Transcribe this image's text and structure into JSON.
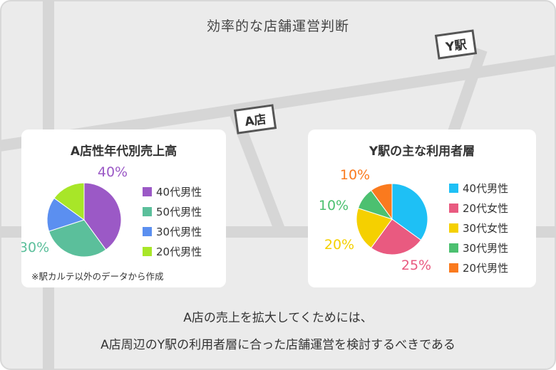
{
  "title": "効率的な店舗運営判断",
  "map_labels": {
    "station": "Y駅",
    "store": "A店"
  },
  "chart_data": [
    {
      "type": "pie",
      "title": "A店性年代別売上高",
      "categories": [
        "40代男性",
        "50代男性",
        "30代男性",
        "20代男性"
      ],
      "values": [
        40,
        30,
        15,
        15
      ],
      "colors": [
        "#9b59c6",
        "#5bbf9b",
        "#5b8ff0",
        "#a8e628"
      ],
      "data_labels": [
        "40%",
        "30%",
        "",
        ""
      ],
      "note": "※駅カルテ以外のデータから作成"
    },
    {
      "type": "pie",
      "title": "Y駅の主な利用者層",
      "categories": [
        "40代男性",
        "20代女性",
        "30代女性",
        "30代男性",
        "20代男性"
      ],
      "values": [
        35,
        25,
        20,
        10,
        10
      ],
      "colors": [
        "#1ec0f5",
        "#e95a80",
        "#f5d000",
        "#4cc070",
        "#fa7a1e"
      ],
      "data_labels": [
        "",
        "25%",
        "20%",
        "10%",
        "10%"
      ]
    }
  ],
  "conclusion": {
    "line1": "A店の売上を拡大してくためには、",
    "line2": "A店周辺のY駅の利用者層に合った店舗運営を検討するべきである"
  }
}
